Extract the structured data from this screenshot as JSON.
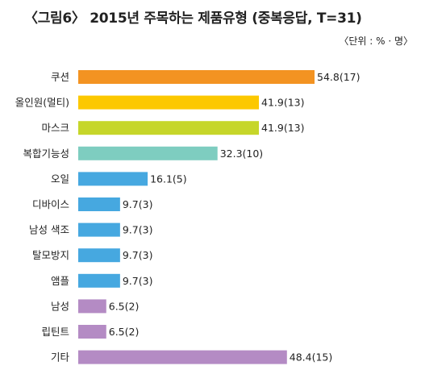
{
  "chart_data": {
    "type": "bar",
    "orientation": "horizontal",
    "title": "〈그림6〉 2015년 주목하는 제품유형 (중복응답, T=31)",
    "unit": "〈단위 : % · 명〉",
    "categories": [
      "쿠션",
      "올인원(멀티)",
      "마스크",
      "복합기능성",
      "오일",
      "디바이스",
      "남성 색조",
      "탈모방지",
      "앰플",
      "남성",
      "립틴트",
      "기타"
    ],
    "values": [
      54.8,
      41.9,
      41.9,
      32.3,
      16.1,
      9.7,
      9.7,
      9.7,
      9.7,
      6.5,
      6.5,
      48.4
    ],
    "labels": [
      "54.8(17)",
      "41.9(13)",
      "41.9(13)",
      "32.3(10)",
      "16.1(5)",
      "9.7(3)",
      "9.7(3)",
      "9.7(3)",
      "9.7(3)",
      "6.5(2)",
      "6.5(2)",
      "48.4(15)"
    ],
    "colors": [
      "#f39322",
      "#fcc800",
      "#c6d62a",
      "#7ecdc0",
      "#46a8e0",
      "#46a8e0",
      "#46a8e0",
      "#46a8e0",
      "#46a8e0",
      "#b48bc4",
      "#b48bc4",
      "#b48bc4"
    ],
    "xlim": [
      0,
      60
    ],
    "grid": false,
    "legend": "none"
  }
}
